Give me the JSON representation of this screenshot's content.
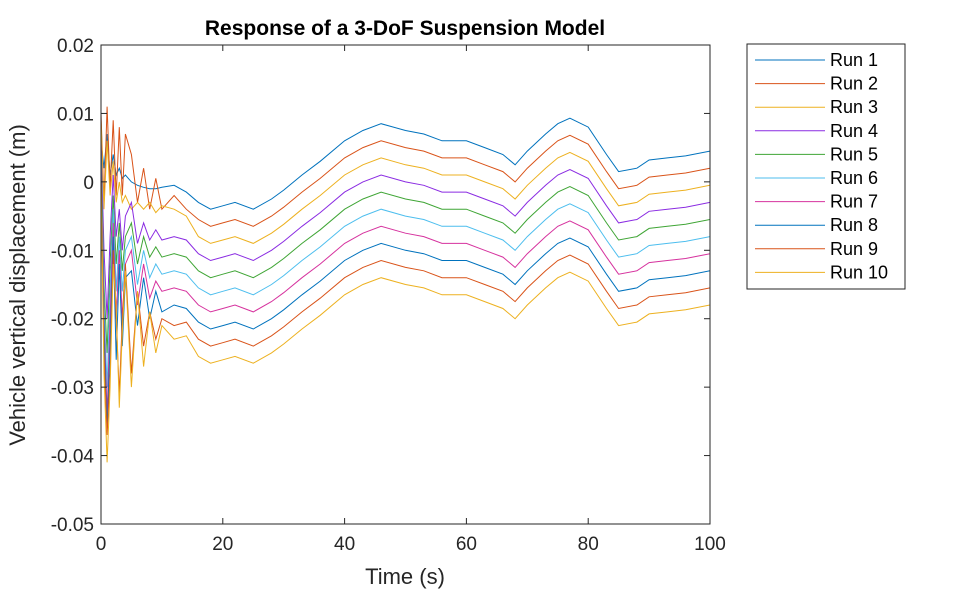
{
  "chart_data": {
    "type": "line",
    "title": "Response of a 3-DoF Suspension Model",
    "xlabel": "Time (s)",
    "ylabel": "Vehicle vertical displacement (m)",
    "xlim": [
      0,
      100
    ],
    "ylim": [
      -0.05,
      0.02
    ],
    "xticks": [
      0,
      20,
      40,
      60,
      80,
      100
    ],
    "xtick_labels": [
      "0",
      "20",
      "40",
      "60",
      "80",
      "100"
    ],
    "yticks": [
      0.02,
      0.01,
      0,
      -0.01,
      -0.02,
      -0.03,
      -0.04,
      -0.05
    ],
    "ytick_labels": [
      "0.02",
      "0.01",
      "0",
      "-0.01",
      "-0.02",
      "-0.03",
      "-0.04",
      "-0.05"
    ],
    "grid": false,
    "legend_placement": "outside-top-right",
    "x": [
      0,
      0.5,
      1,
      1.5,
      2,
      2.5,
      3,
      3.5,
      4,
      5,
      6,
      7,
      8,
      9,
      10,
      12,
      14,
      16,
      18,
      20,
      22,
      25,
      28,
      30,
      33,
      36,
      40,
      43,
      46,
      50,
      53,
      56,
      60,
      63,
      66,
      68,
      70,
      73,
      75,
      77,
      80,
      83,
      85,
      88,
      90,
      93,
      96,
      100
    ],
    "series": [
      {
        "name": "Run 1",
        "color": "#0072BD",
        "y": [
          0.006,
          0.002,
          0.007,
          0.001,
          0.004,
          0.001,
          0.002,
          0.0005,
          0.001,
          0,
          -0.0005,
          -0.0008,
          -0.001,
          -0.001,
          -0.0008,
          -0.0005,
          -0.0015,
          -0.003,
          -0.004,
          -0.0035,
          -0.003,
          -0.004,
          -0.0025,
          -0.0012,
          0.001,
          0.003,
          0.006,
          0.0075,
          0.0085,
          0.0075,
          0.007,
          0.006,
          0.006,
          0.005,
          0.004,
          0.0025,
          0.0045,
          0.007,
          0.0085,
          0.0093,
          0.008,
          0.004,
          0.0015,
          0.002,
          0.0032,
          0.0035,
          0.0038,
          0.0045
        ]
      },
      {
        "name": "Run 2",
        "color": "#D95319",
        "y": [
          0.01,
          -0.003,
          0.011,
          -0.001,
          0.009,
          -0.002,
          0.008,
          -0.002,
          0.007,
          0.004,
          -0.003,
          0.002,
          -0.004,
          0.0005,
          -0.004,
          -0.002,
          -0.004,
          -0.0055,
          -0.0065,
          -0.006,
          -0.0055,
          -0.0065,
          -0.005,
          -0.0037,
          -0.0015,
          0.0005,
          0.0035,
          0.005,
          0.006,
          0.005,
          0.0045,
          0.0035,
          0.0035,
          0.0025,
          0.0015,
          0,
          0.002,
          0.0045,
          0.006,
          0.0068,
          0.0055,
          0.0015,
          -0.001,
          -0.0005,
          0.0007,
          0.001,
          0.0013,
          0.002
        ]
      },
      {
        "name": "Run 3",
        "color": "#EDB120",
        "y": [
          0.009,
          -0.004,
          0.006,
          -0.002,
          0.003,
          -0.003,
          0,
          -0.003,
          -0.002,
          -0.004,
          -0.003,
          -0.004,
          -0.003,
          -0.0045,
          -0.0035,
          -0.004,
          -0.005,
          -0.008,
          -0.009,
          -0.0085,
          -0.008,
          -0.009,
          -0.0075,
          -0.0062,
          -0.004,
          -0.002,
          0.001,
          0.0025,
          0.0035,
          0.0025,
          0.002,
          0.001,
          0.001,
          0,
          -0.001,
          -0.0025,
          -0.0005,
          0.002,
          0.0035,
          0.0043,
          0.003,
          -0.001,
          -0.0035,
          -0.003,
          -0.0018,
          -0.0015,
          -0.0012,
          -0.0005
        ]
      },
      {
        "name": "Run 4",
        "color": "#8A2BE2",
        "y": [
          0.006,
          -0.01,
          -0.02,
          -0.008,
          0.001,
          -0.008,
          -0.004,
          -0.01,
          -0.005,
          -0.003,
          -0.009,
          -0.006,
          -0.0085,
          -0.007,
          -0.0085,
          -0.008,
          -0.0085,
          -0.0105,
          -0.0115,
          -0.011,
          -0.0105,
          -0.0115,
          -0.01,
          -0.0087,
          -0.0065,
          -0.0045,
          -0.0015,
          0,
          0.001,
          0,
          -0.0005,
          -0.0015,
          -0.0015,
          -0.0025,
          -0.0035,
          -0.005,
          -0.003,
          -0.0005,
          0.001,
          0.0018,
          0.0005,
          -0.0035,
          -0.006,
          -0.0055,
          -0.0043,
          -0.004,
          -0.0037,
          -0.003
        ]
      },
      {
        "name": "Run 5",
        "color": "#3FA535",
        "y": [
          0.005,
          -0.015,
          -0.025,
          -0.012,
          -0.002,
          -0.012,
          -0.006,
          -0.013,
          -0.008,
          -0.006,
          -0.012,
          -0.008,
          -0.011,
          -0.0095,
          -0.011,
          -0.0105,
          -0.011,
          -0.013,
          -0.014,
          -0.0135,
          -0.013,
          -0.014,
          -0.0125,
          -0.0112,
          -0.009,
          -0.007,
          -0.004,
          -0.0025,
          -0.0015,
          -0.0025,
          -0.003,
          -0.004,
          -0.004,
          -0.005,
          -0.006,
          -0.0075,
          -0.0055,
          -0.003,
          -0.0015,
          -0.0007,
          -0.002,
          -0.006,
          -0.0085,
          -0.008,
          -0.0068,
          -0.0065,
          -0.0062,
          -0.0055
        ]
      },
      {
        "name": "Run 6",
        "color": "#4DBEEE",
        "y": [
          0.004,
          -0.018,
          -0.03,
          -0.016,
          -0.004,
          -0.016,
          -0.008,
          -0.016,
          -0.01,
          -0.008,
          -0.015,
          -0.01,
          -0.014,
          -0.012,
          -0.0135,
          -0.013,
          -0.0135,
          -0.0155,
          -0.0165,
          -0.016,
          -0.0155,
          -0.0165,
          -0.015,
          -0.0137,
          -0.0115,
          -0.0095,
          -0.0065,
          -0.005,
          -0.004,
          -0.005,
          -0.0055,
          -0.0065,
          -0.0065,
          -0.0075,
          -0.0085,
          -0.01,
          -0.008,
          -0.0055,
          -0.004,
          -0.0032,
          -0.0045,
          -0.0085,
          -0.011,
          -0.0105,
          -0.0093,
          -0.009,
          -0.0087,
          -0.008
        ]
      },
      {
        "name": "Run 7",
        "color": "#D6329E",
        "y": [
          0.003,
          -0.02,
          -0.034,
          -0.02,
          -0.006,
          -0.02,
          -0.01,
          -0.02,
          -0.012,
          -0.01,
          -0.018,
          -0.012,
          -0.017,
          -0.0145,
          -0.016,
          -0.0155,
          -0.016,
          -0.018,
          -0.019,
          -0.0185,
          -0.018,
          -0.019,
          -0.0175,
          -0.0162,
          -0.014,
          -0.012,
          -0.009,
          -0.0075,
          -0.0065,
          -0.0075,
          -0.008,
          -0.009,
          -0.009,
          -0.01,
          -0.011,
          -0.0125,
          -0.0105,
          -0.008,
          -0.0065,
          -0.0057,
          -0.007,
          -0.011,
          -0.0135,
          -0.013,
          -0.0118,
          -0.0115,
          -0.0112,
          -0.0105
        ]
      },
      {
        "name": "Run 8",
        "color": "#0072BD",
        "y": [
          0.002,
          -0.022,
          -0.036,
          -0.024,
          -0.008,
          -0.026,
          -0.012,
          -0.024,
          -0.014,
          -0.013,
          -0.021,
          -0.014,
          -0.02,
          -0.016,
          -0.019,
          -0.018,
          -0.0185,
          -0.0205,
          -0.0215,
          -0.021,
          -0.0205,
          -0.0215,
          -0.02,
          -0.0187,
          -0.0165,
          -0.0145,
          -0.0115,
          -0.01,
          -0.009,
          -0.01,
          -0.0105,
          -0.0115,
          -0.0115,
          -0.0125,
          -0.0135,
          -0.015,
          -0.013,
          -0.0105,
          -0.009,
          -0.0082,
          -0.0095,
          -0.0135,
          -0.016,
          -0.0155,
          -0.0143,
          -0.014,
          -0.0137,
          -0.013
        ]
      },
      {
        "name": "Run 9",
        "color": "#D95319",
        "y": [
          0.001,
          -0.025,
          -0.037,
          -0.028,
          -0.01,
          -0.02,
          -0.031,
          -0.02,
          -0.012,
          -0.028,
          -0.016,
          -0.024,
          -0.019,
          -0.023,
          -0.02,
          -0.021,
          -0.0205,
          -0.023,
          -0.024,
          -0.0235,
          -0.023,
          -0.024,
          -0.0225,
          -0.0212,
          -0.019,
          -0.017,
          -0.014,
          -0.0125,
          -0.0115,
          -0.0125,
          -0.013,
          -0.014,
          -0.014,
          -0.015,
          -0.016,
          -0.0175,
          -0.0155,
          -0.013,
          -0.0115,
          -0.0107,
          -0.012,
          -0.016,
          -0.0185,
          -0.018,
          -0.0168,
          -0.0165,
          -0.0162,
          -0.0155
        ]
      },
      {
        "name": "Run 10",
        "color": "#EDB120",
        "y": [
          0,
          -0.028,
          -0.041,
          -0.03,
          -0.012,
          -0.018,
          -0.033,
          -0.022,
          -0.013,
          -0.03,
          -0.016,
          -0.027,
          -0.019,
          -0.025,
          -0.021,
          -0.023,
          -0.0225,
          -0.0255,
          -0.0265,
          -0.026,
          -0.0255,
          -0.0265,
          -0.025,
          -0.0237,
          -0.0215,
          -0.0195,
          -0.0165,
          -0.015,
          -0.014,
          -0.015,
          -0.0155,
          -0.0165,
          -0.0165,
          -0.0175,
          -0.0185,
          -0.02,
          -0.018,
          -0.0155,
          -0.014,
          -0.0132,
          -0.0145,
          -0.0185,
          -0.021,
          -0.0205,
          -0.0193,
          -0.019,
          -0.0187,
          -0.018
        ]
      }
    ]
  }
}
